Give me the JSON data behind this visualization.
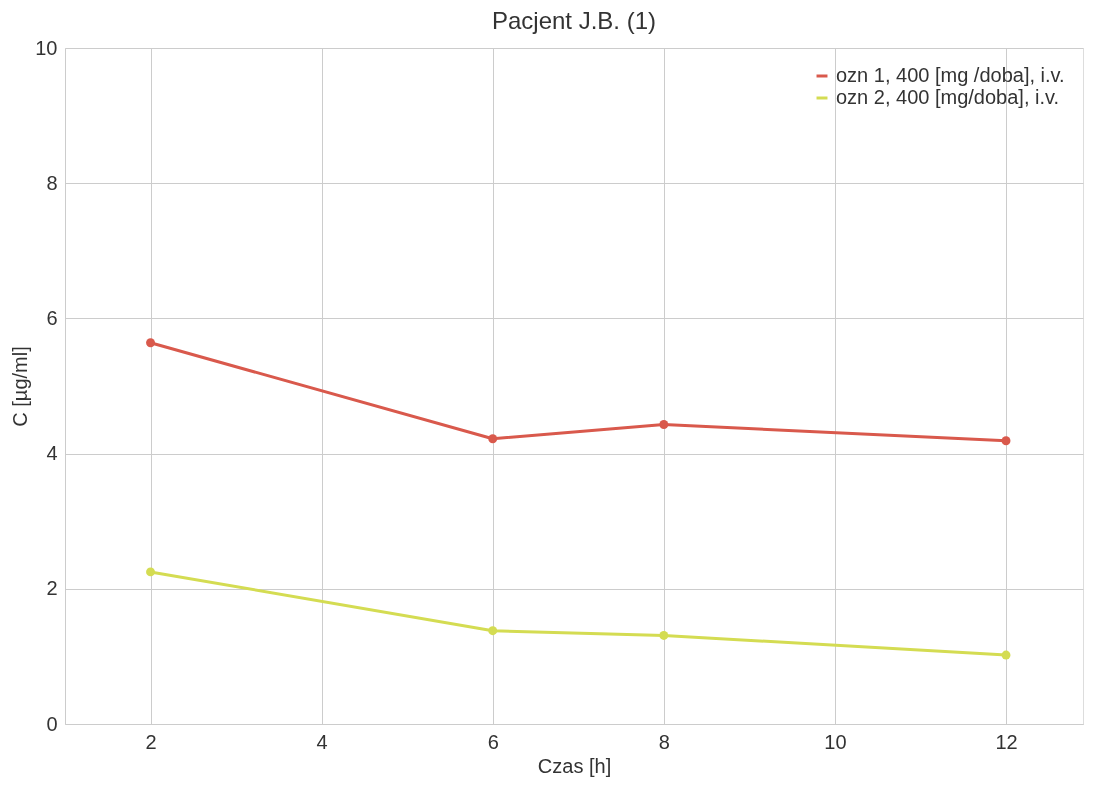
{
  "chart_data": {
    "type": "line",
    "title": "Pacjent J.B. (1)",
    "xlabel": "Czas [h]",
    "ylabel": "C [µg/ml]",
    "x": [
      2,
      6,
      8,
      12
    ],
    "series": [
      {
        "name": "ozn 1, 400 [mg /doba], i.v.",
        "color": "#d9594c",
        "values": [
          5.64,
          4.22,
          4.43,
          4.19
        ]
      },
      {
        "name": "ozn 2, 400 [mg/doba], i.v.",
        "color": "#d4dc52",
        "values": [
          2.25,
          1.38,
          1.31,
          1.02
        ]
      }
    ],
    "xlim": [
      1,
      12.9
    ],
    "ylim": [
      0,
      10
    ],
    "xticks": [
      2,
      4,
      6,
      8,
      10,
      12
    ],
    "yticks": [
      0,
      2,
      4,
      6,
      8,
      10
    ],
    "grid": true,
    "legend": "top right",
    "marker": "circle",
    "line_style": "solid"
  }
}
